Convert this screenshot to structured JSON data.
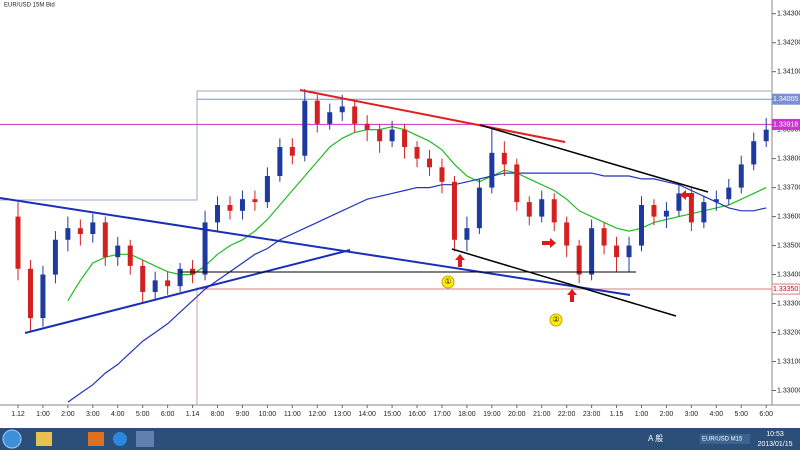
{
  "window": {
    "title": "EUR/USD 15M Bid"
  },
  "chart_data": {
    "type": "candlestick",
    "open": [
      1.336,
      1.3342,
      1.3325,
      1.334,
      1.3352,
      1.3356,
      1.3354,
      1.3358,
      1.3346,
      1.335,
      1.3343,
      1.3334,
      1.3338,
      1.3336,
      1.3342,
      1.334,
      1.3358,
      1.3364,
      1.3362,
      1.3366,
      1.3365,
      1.3374,
      1.3384,
      1.3381,
      1.34,
      1.3392,
      1.3396,
      1.3398,
      1.3392,
      1.339,
      1.3386,
      1.339,
      1.3384,
      1.338,
      1.3377,
      1.3372,
      1.3352,
      1.3356,
      1.337,
      1.3382,
      1.3378,
      1.3365,
      1.336,
      1.3366,
      1.3358,
      1.335,
      1.334,
      1.3356,
      1.335,
      1.3346,
      1.335,
      1.3364,
      1.336,
      1.3362,
      1.3368,
      1.3358,
      1.3365,
      1.3366,
      1.337,
      1.3378,
      1.3386
    ],
    "high": [
      1.3365,
      1.3345,
      1.3343,
      1.3355,
      1.336,
      1.3359,
      1.3361,
      1.336,
      1.3353,
      1.3352,
      1.3345,
      1.3341,
      1.3341,
      1.3344,
      1.3345,
      1.3362,
      1.3367,
      1.3367,
      1.3369,
      1.3369,
      1.3377,
      1.3387,
      1.3387,
      1.3404,
      1.3402,
      1.3399,
      1.3402,
      1.34,
      1.3395,
      1.3392,
      1.3393,
      1.3392,
      1.3386,
      1.3383,
      1.338,
      1.3374,
      1.336,
      1.3373,
      1.3391,
      1.3386,
      1.338,
      1.3367,
      1.3369,
      1.3368,
      1.336,
      1.3352,
      1.3359,
      1.3358,
      1.3353,
      1.3353,
      1.3367,
      1.3366,
      1.3365,
      1.3371,
      1.337,
      1.3367,
      1.3369,
      1.3373,
      1.3381,
      1.3389,
      1.3394
    ],
    "low": [
      1.3338,
      1.332,
      1.3322,
      1.3337,
      1.3348,
      1.335,
      1.3351,
      1.3343,
      1.3343,
      1.334,
      1.333,
      1.3331,
      1.3333,
      1.3334,
      1.3337,
      1.3338,
      1.3355,
      1.3359,
      1.3359,
      1.3362,
      1.3363,
      1.3372,
      1.3378,
      1.3379,
      1.3389,
      1.339,
      1.3393,
      1.3389,
      1.3386,
      1.3382,
      1.3384,
      1.338,
      1.3377,
      1.3374,
      1.3368,
      1.3348,
      1.3348,
      1.3354,
      1.3368,
      1.3374,
      1.3362,
      1.3357,
      1.3358,
      1.3355,
      1.3346,
      1.3337,
      1.3338,
      1.3347,
      1.3341,
      1.3341,
      1.3348,
      1.3357,
      1.3356,
      1.336,
      1.3355,
      1.3356,
      1.3362,
      1.3364,
      1.3368,
      1.3376,
      1.3384
    ],
    "close": [
      1.3342,
      1.3325,
      1.334,
      1.3352,
      1.3356,
      1.3354,
      1.3358,
      1.3346,
      1.335,
      1.3343,
      1.3334,
      1.3338,
      1.3336,
      1.3342,
      1.334,
      1.3358,
      1.3364,
      1.3362,
      1.3366,
      1.3365,
      1.3374,
      1.3384,
      1.3381,
      1.34,
      1.3392,
      1.3396,
      1.3398,
      1.3392,
      1.339,
      1.3386,
      1.339,
      1.3384,
      1.338,
      1.3377,
      1.3372,
      1.3352,
      1.3356,
      1.337,
      1.3382,
      1.3378,
      1.3365,
      1.336,
      1.3366,
      1.3358,
      1.335,
      1.334,
      1.3356,
      1.335,
      1.3346,
      1.335,
      1.3364,
      1.336,
      1.3362,
      1.3368,
      1.3358,
      1.3365,
      1.3366,
      1.337,
      1.3378,
      1.3386,
      1.339
    ],
    "up_color": "#1f3a9e",
    "down_color": "#d42020",
    "series": [
      {
        "color": "#22bb22",
        "values": [
          null,
          null,
          null,
          null,
          1.3331,
          1.3338,
          1.3344,
          1.3346,
          1.3347,
          1.3347,
          1.3345,
          1.3343,
          1.3341,
          1.334,
          1.334,
          1.3343,
          1.3347,
          1.335,
          1.3352,
          1.3355,
          1.3359,
          1.3364,
          1.3369,
          1.3374,
          1.3379,
          1.3384,
          1.3387,
          1.3389,
          1.339,
          1.339,
          1.3391,
          1.339,
          1.3388,
          1.3386,
          1.3383,
          1.3378,
          1.3374,
          1.3372,
          1.3374,
          1.3376,
          1.3375,
          1.3373,
          1.3371,
          1.3369,
          1.3366,
          1.3362,
          1.336,
          1.3358,
          1.3356,
          1.3355,
          1.3356,
          1.3358,
          1.3359,
          1.336,
          1.3361,
          1.3362,
          1.3363,
          1.3364,
          1.3366,
          1.3368,
          1.337
        ]
      },
      {
        "color": "#2233bb",
        "values": [
          null,
          null,
          null,
          null,
          1.3296,
          1.3299,
          1.3302,
          1.3306,
          1.3309,
          1.3313,
          1.3317,
          1.332,
          1.3323,
          1.3327,
          1.3331,
          1.3335,
          1.3338,
          1.3341,
          1.3344,
          1.3347,
          1.3349,
          1.3352,
          1.3354,
          1.3356,
          1.3358,
          1.336,
          1.3362,
          1.3364,
          1.3366,
          1.3367,
          1.3368,
          1.3369,
          1.337,
          1.337,
          1.3371,
          1.3371,
          1.3372,
          1.3373,
          1.3374,
          1.3375,
          1.3375,
          1.3375,
          1.3375,
          1.3375,
          1.3375,
          1.3375,
          1.3375,
          1.3374,
          1.3374,
          1.3374,
          1.3373,
          1.3373,
          1.3372,
          1.3371,
          1.3369,
          1.3367,
          1.3365,
          1.3363,
          1.3362,
          1.3362,
          1.3363
        ]
      }
    ],
    "levels": [
      {
        "value": 1.34005,
        "label": "1.34005",
        "color": "#7a8fd0"
      },
      {
        "value": 1.33918,
        "label": "1.33918",
        "color": "#cc33cc"
      },
      {
        "value": 1.3335,
        "label": "1.33350",
        "color": "#d08080"
      }
    ],
    "annotations": [
      "①",
      "②"
    ],
    "ylim": [
      1.3295,
      1.3433
    ],
    "yticks": [
      {
        "value": 1.343,
        "label": "1.34300"
      },
      {
        "value": 1.342,
        "label": "1.34200"
      },
      {
        "value": 1.341,
        "label": "1.34100"
      },
      {
        "value": 1.34,
        "label": "1.34000"
      },
      {
        "value": 1.339,
        "label": "1.33900"
      },
      {
        "value": 1.338,
        "label": "1.33800"
      },
      {
        "value": 1.337,
        "label": "1.33700"
      },
      {
        "value": 1.336,
        "label": "1.33600"
      },
      {
        "value": 1.335,
        "label": "1.33500"
      },
      {
        "value": 1.334,
        "label": "1.33400"
      },
      {
        "value": 1.333,
        "label": "1.33300"
      },
      {
        "value": 1.332,
        "label": "1.33200"
      },
      {
        "value": 1.331,
        "label": "1.33100"
      },
      {
        "value": 1.33,
        "label": "1.33000"
      }
    ],
    "xticks": [
      {
        "value": 0,
        "label": "1.12"
      },
      {
        "value": 2,
        "label": "1:00"
      },
      {
        "value": 4,
        "label": "2:00"
      },
      {
        "value": 6,
        "label": "3:00"
      },
      {
        "value": 8,
        "label": "4:00"
      },
      {
        "value": 10,
        "label": "5:00"
      },
      {
        "value": 12,
        "label": "6:00"
      },
      {
        "value": 14,
        "label": "1.14"
      },
      {
        "value": 16,
        "label": "8:00"
      },
      {
        "value": 18,
        "label": "9:00"
      },
      {
        "value": 20,
        "label": "10:00"
      },
      {
        "value": 22,
        "label": "11:00"
      },
      {
        "value": 24,
        "label": "12:00"
      },
      {
        "value": 26,
        "label": "13:00"
      },
      {
        "value": 28,
        "label": "14:00"
      },
      {
        "value": 30,
        "label": "15:00"
      },
      {
        "value": 32,
        "label": "16:00"
      },
      {
        "value": 34,
        "label": "17:00"
      },
      {
        "value": 36,
        "label": "18:00"
      },
      {
        "value": 38,
        "label": "19:00"
      },
      {
        "value": 40,
        "label": "20:00"
      },
      {
        "value": 42,
        "label": "21:00"
      },
      {
        "value": 44,
        "label": "22:00"
      },
      {
        "value": 46,
        "label": "23:00"
      },
      {
        "value": 48,
        "label": "1.15"
      },
      {
        "value": 50,
        "label": "1:00"
      },
      {
        "value": 52,
        "label": "2:00"
      },
      {
        "value": 54,
        "label": "3:00"
      },
      {
        "value": 56,
        "label": "4:00"
      },
      {
        "value": 58,
        "label": "5:00"
      },
      {
        "value": 60,
        "label": "6:00"
      }
    ]
  },
  "taskbar": {
    "ime": "A 般",
    "window_button": "EUR/USD M15",
    "time": "10:53",
    "date": "2013/01/15"
  }
}
